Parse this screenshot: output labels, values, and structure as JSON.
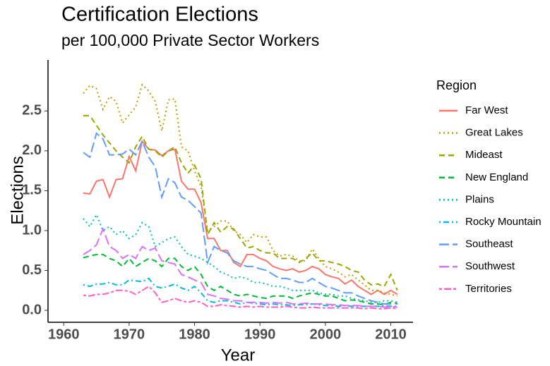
{
  "chart_data": {
    "type": "line",
    "title": "Certification Elections",
    "subtitle": "per 100,000 Private Sector Workers",
    "x_label": "Year",
    "y_label": "Elections",
    "legend_title": "Region",
    "legend_position": "right",
    "xlim": [
      1957.6,
      2013.4
    ],
    "xticks": [
      1960,
      1970,
      1980,
      1990,
      2000,
      2010
    ],
    "ylim": [
      -0.15,
      3.14
    ],
    "yticks": [
      {
        "value": 0,
        "label": "0.0"
      },
      {
        "value": 0.5,
        "label": "0.5"
      },
      {
        "value": 1,
        "label": "1.0"
      },
      {
        "value": 1.5,
        "label": "1.5"
      },
      {
        "value": 2,
        "label": "2.0"
      },
      {
        "value": 2.5,
        "label": "2.5"
      }
    ],
    "x": [
      1963,
      1964,
      1965,
      1966,
      1967,
      1968,
      1969,
      1970,
      1971,
      1972,
      1973,
      1974,
      1975,
      1976,
      1977,
      1978,
      1979,
      1980,
      1981,
      1982,
      1983,
      1984,
      1985,
      1986,
      1987,
      1988,
      1989,
      1990,
      1991,
      1992,
      1993,
      1994,
      1995,
      1996,
      1997,
      1998,
      1999,
      2000,
      2001,
      2002,
      2003,
      2004,
      2005,
      2006,
      2007,
      2008,
      2009,
      2010,
      2011
    ],
    "series": [
      {
        "name": "Far West",
        "color": "#F8766D",
        "linetype": "solid",
        "values": [
          1.47,
          1.46,
          1.62,
          1.64,
          1.42,
          1.64,
          1.65,
          1.93,
          1.75,
          2.12,
          2.02,
          2.01,
          1.94,
          2.0,
          2.02,
          1.62,
          1.52,
          1.52,
          1.35,
          0.9,
          0.9,
          0.75,
          0.75,
          0.6,
          0.55,
          0.7,
          0.7,
          0.65,
          0.62,
          0.55,
          0.52,
          0.5,
          0.52,
          0.48,
          0.5,
          0.55,
          0.52,
          0.45,
          0.42,
          0.4,
          0.33,
          0.38,
          0.3,
          0.25,
          0.2,
          0.25,
          0.2,
          0.25,
          0.2
        ]
      },
      {
        "name": "Great Lakes",
        "color": "#C49A00",
        "linetype": "dotted",
        "values": [
          2.72,
          2.82,
          2.78,
          2.52,
          2.68,
          2.62,
          2.35,
          2.45,
          2.55,
          2.83,
          2.75,
          2.62,
          2.25,
          2.64,
          2.65,
          2.05,
          2.0,
          1.75,
          1.55,
          1.0,
          1.05,
          1.12,
          1.12,
          1.0,
          0.95,
          0.85,
          0.95,
          0.92,
          0.92,
          0.75,
          0.68,
          0.7,
          0.68,
          0.62,
          0.62,
          0.77,
          0.65,
          0.55,
          0.52,
          0.48,
          0.42,
          0.45,
          0.38,
          0.32,
          0.25,
          0.25,
          0.22,
          0.2,
          0.18
        ]
      },
      {
        "name": "Mideast",
        "color": "#99A800",
        "linetype": "dashed",
        "values": [
          2.44,
          2.44,
          2.32,
          2.2,
          2.1,
          2.0,
          1.92,
          1.85,
          2.05,
          2.18,
          2.02,
          2.0,
          1.92,
          2.0,
          2.05,
          1.85,
          1.72,
          1.82,
          1.65,
          0.95,
          1.1,
          0.98,
          1.05,
          1.02,
          0.9,
          0.78,
          0.8,
          0.75,
          0.72,
          0.72,
          0.65,
          0.65,
          0.65,
          0.6,
          0.65,
          0.72,
          0.62,
          0.62,
          0.6,
          0.58,
          0.55,
          0.5,
          0.48,
          0.38,
          0.32,
          0.33,
          0.3,
          0.45,
          0.25
        ]
      },
      {
        "name": "New England",
        "color": "#00BA38",
        "linetype": "dashed",
        "values": [
          0.66,
          0.68,
          0.7,
          0.7,
          0.65,
          0.62,
          0.55,
          0.65,
          0.55,
          0.6,
          0.65,
          0.62,
          0.55,
          0.65,
          0.65,
          0.55,
          0.5,
          0.55,
          0.45,
          0.3,
          0.25,
          0.3,
          0.25,
          0.2,
          0.18,
          0.2,
          0.18,
          0.16,
          0.15,
          0.18,
          0.18,
          0.18,
          0.15,
          0.18,
          0.2,
          0.22,
          0.2,
          0.18,
          0.18,
          0.15,
          0.12,
          0.13,
          0.12,
          0.1,
          0.08,
          0.08,
          0.07,
          0.1,
          0.08
        ]
      },
      {
        "name": "Plains",
        "color": "#00C19F",
        "linetype": "dotted",
        "values": [
          1.15,
          1.05,
          1.2,
          1.0,
          1.05,
          0.95,
          1.0,
          0.9,
          0.95,
          1.1,
          1.05,
          0.8,
          0.85,
          0.9,
          0.92,
          0.8,
          0.7,
          0.68,
          0.65,
          0.6,
          0.55,
          0.48,
          0.45,
          0.4,
          0.42,
          0.4,
          0.35,
          0.35,
          0.33,
          0.3,
          0.3,
          0.28,
          0.25,
          0.25,
          0.25,
          0.25,
          0.22,
          0.2,
          0.2,
          0.18,
          0.18,
          0.15,
          0.13,
          0.12,
          0.1,
          0.1,
          0.12,
          0.12,
          0.1
        ]
      },
      {
        "name": "Rocky Mountain",
        "color": "#00B9E3",
        "linetype": "dotdash",
        "values": [
          0.32,
          0.3,
          0.33,
          0.33,
          0.35,
          0.32,
          0.32,
          0.38,
          0.37,
          0.36,
          0.4,
          0.3,
          0.28,
          0.3,
          0.33,
          0.28,
          0.25,
          0.3,
          0.22,
          0.12,
          0.1,
          0.12,
          0.12,
          0.1,
          0.08,
          0.1,
          0.09,
          0.08,
          0.07,
          0.08,
          0.07,
          0.07,
          0.06,
          0.07,
          0.07,
          0.08,
          0.07,
          0.06,
          0.06,
          0.05,
          0.06,
          0.05,
          0.05,
          0.05,
          0.05,
          0.05,
          0.06,
          0.05,
          0.05
        ]
      },
      {
        "name": "Southeast",
        "color": "#619CFF",
        "linetype": "longdash",
        "values": [
          1.98,
          1.92,
          2.22,
          2.15,
          1.95,
          1.95,
          1.96,
          2.02,
          1.95,
          2.12,
          1.92,
          1.8,
          1.42,
          1.65,
          1.6,
          1.42,
          1.38,
          1.3,
          1.22,
          0.6,
          0.8,
          0.75,
          0.72,
          0.62,
          0.58,
          0.55,
          0.55,
          0.52,
          0.5,
          0.45,
          0.4,
          0.4,
          0.38,
          0.35,
          0.35,
          0.4,
          0.35,
          0.3,
          0.28,
          0.25,
          0.22,
          0.22,
          0.18,
          0.15,
          0.12,
          0.1,
          0.08,
          0.08,
          0.1
        ]
      },
      {
        "name": "Southwest",
        "color": "#DB72FB",
        "linetype": "longdash",
        "values": [
          0.7,
          0.75,
          0.82,
          1.02,
          0.8,
          0.75,
          0.65,
          0.7,
          0.65,
          0.8,
          0.75,
          0.78,
          0.62,
          0.6,
          0.58,
          0.45,
          0.42,
          0.38,
          0.35,
          0.2,
          0.18,
          0.15,
          0.14,
          0.12,
          0.12,
          0.1,
          0.1,
          0.1,
          0.09,
          0.1,
          0.09,
          0.1,
          0.08,
          0.08,
          0.09,
          0.08,
          0.08,
          0.08,
          0.07,
          0.07,
          0.06,
          0.06,
          0.06,
          0.05,
          0.05,
          0.05,
          0.04,
          0.05,
          0.04
        ]
      },
      {
        "name": "Territories",
        "color": "#FF61C3",
        "linetype": "twodash",
        "values": [
          0.19,
          0.18,
          0.2,
          0.2,
          0.22,
          0.25,
          0.25,
          0.24,
          0.2,
          0.25,
          0.3,
          0.22,
          0.1,
          0.12,
          0.15,
          0.12,
          0.1,
          0.12,
          0.1,
          0.05,
          0.05,
          0.07,
          0.06,
          0.05,
          0.04,
          0.05,
          0.04,
          0.05,
          0.04,
          0.04,
          0.04,
          0.05,
          0.04,
          0.03,
          0.03,
          0.04,
          0.03,
          0.03,
          0.03,
          0.03,
          0.03,
          0.03,
          0.03,
          0.02,
          0.03,
          0.02,
          0.02,
          0.03,
          0.02
        ]
      }
    ]
  }
}
